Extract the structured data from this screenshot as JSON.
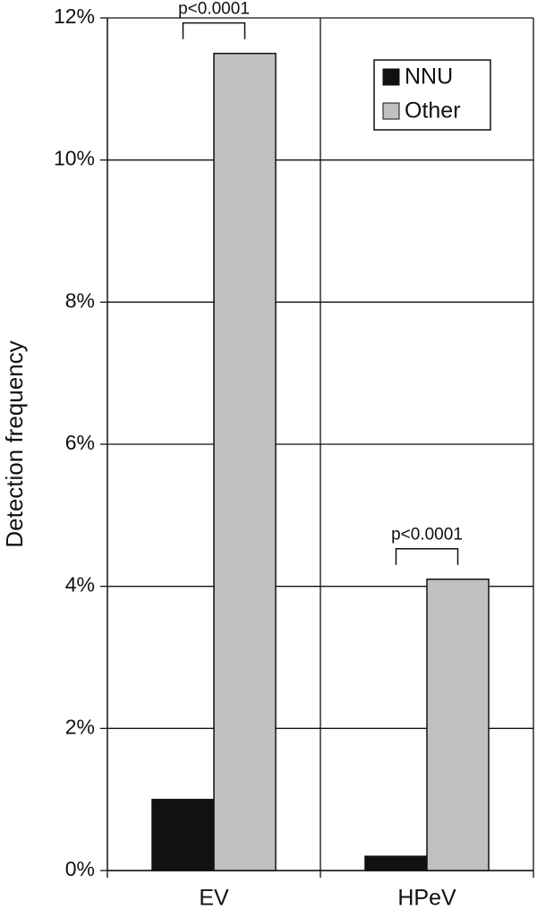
{
  "chart_data": {
    "type": "bar",
    "y_label": "Detection frequency",
    "categories": [
      "EV",
      "HPeV"
    ],
    "series": [
      {
        "name": "NNU",
        "color": "#111111",
        "values": [
          1.0,
          0.2
        ]
      },
      {
        "name": "Other",
        "color": "#c0c0c0",
        "values": [
          11.5,
          4.1
        ]
      }
    ],
    "annotations": [
      "p<0.0001",
      "p<0.0001"
    ],
    "ylim": [
      0,
      12
    ],
    "yticks": [
      {
        "value": 0,
        "label": "0%"
      },
      {
        "value": 2,
        "label": "2%"
      },
      {
        "value": 4,
        "label": "4%"
      },
      {
        "value": 6,
        "label": "6%"
      },
      {
        "value": 8,
        "label": "8%"
      },
      {
        "value": 10,
        "label": "10%"
      },
      {
        "value": 12,
        "label": "12%"
      }
    ],
    "grid": true,
    "legend": "upper right"
  }
}
